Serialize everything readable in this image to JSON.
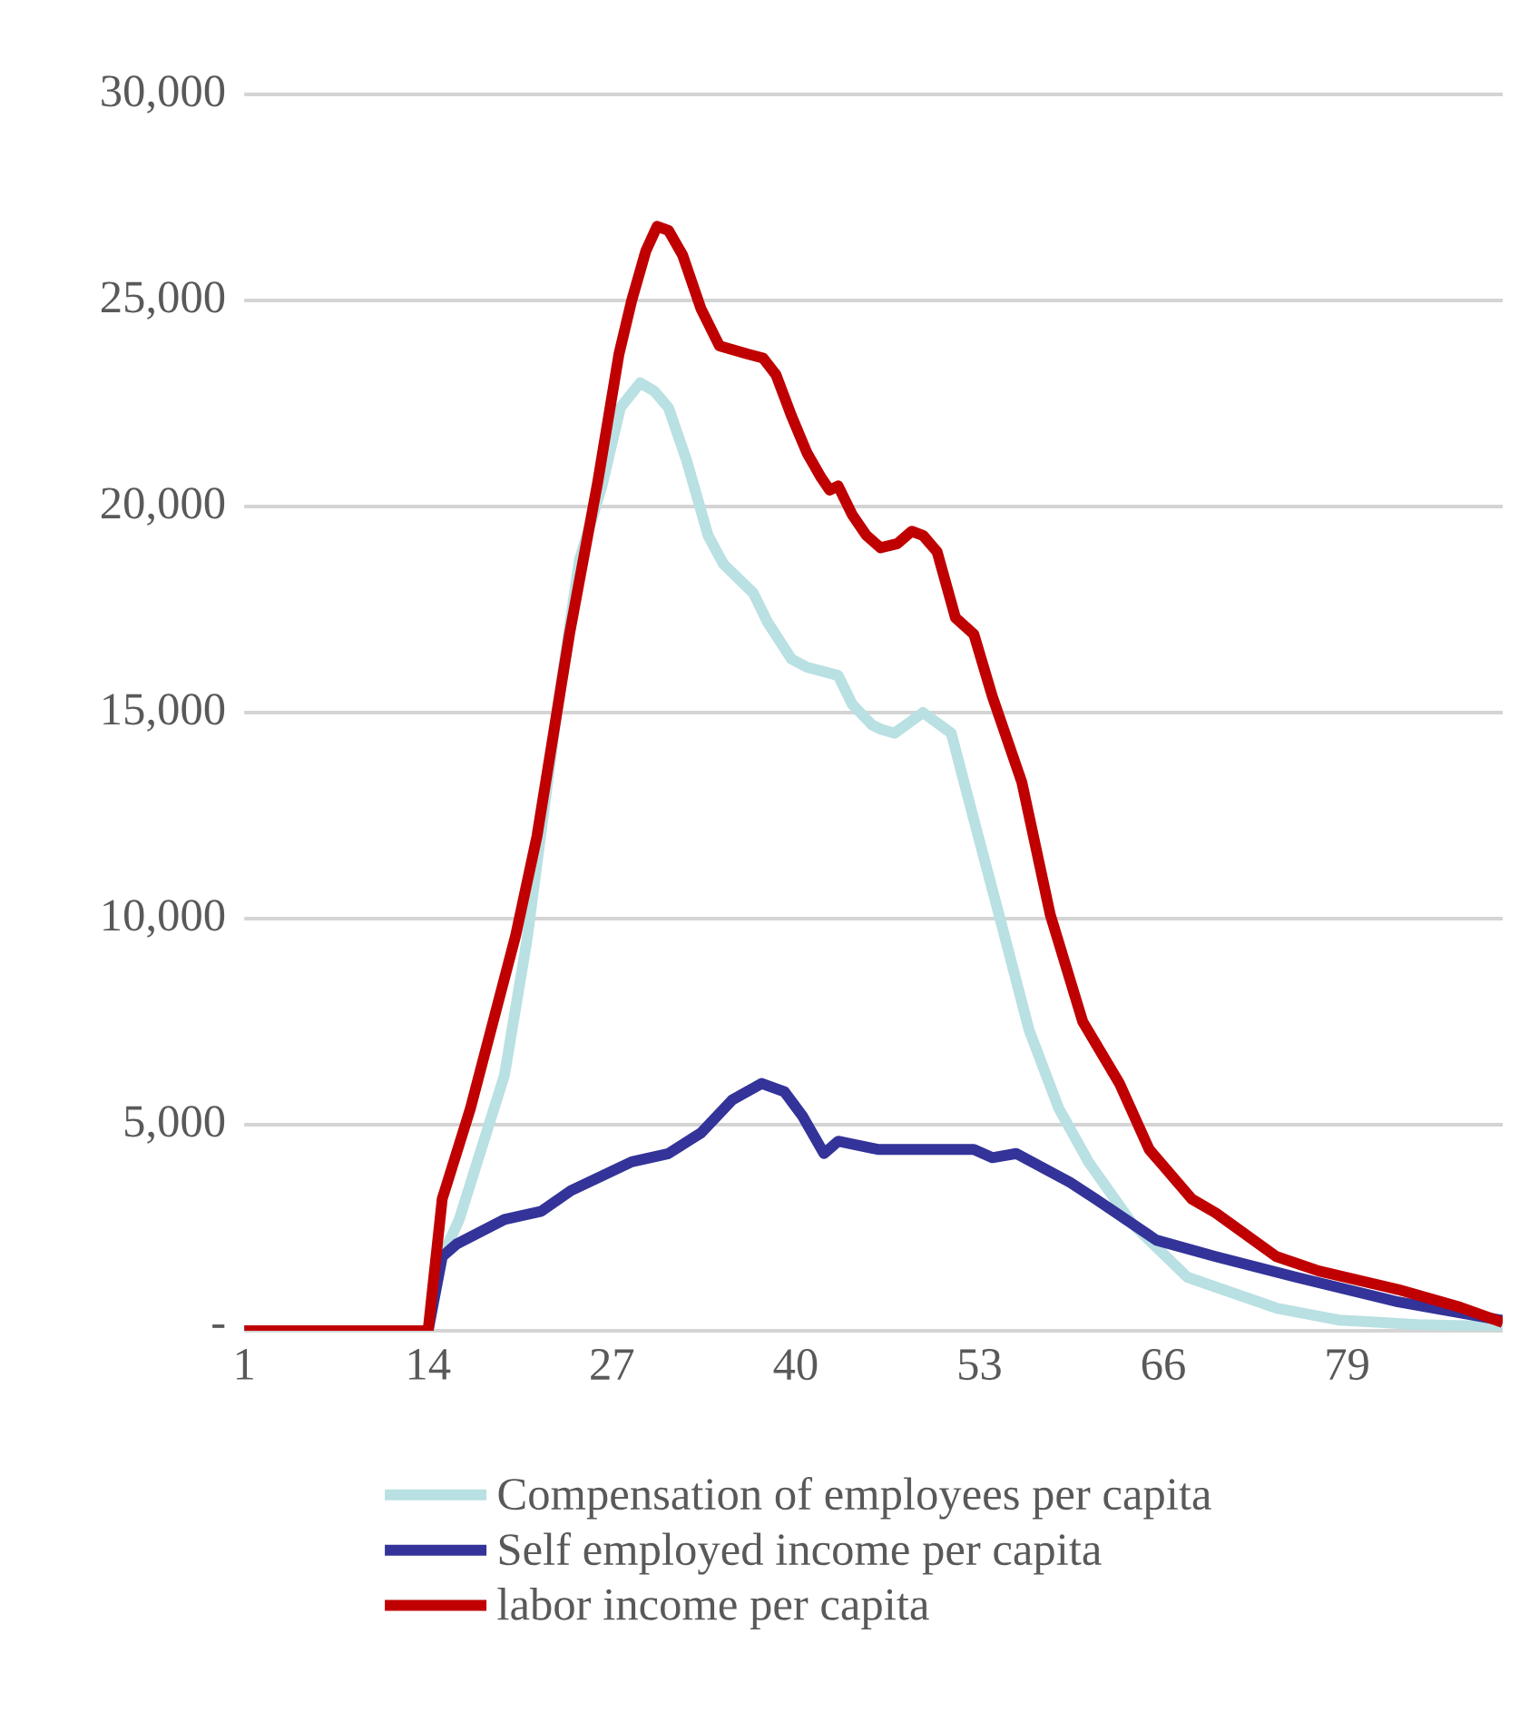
{
  "chart_data": {
    "type": "line",
    "xlim": [
      1,
      90
    ],
    "xticks": [
      1,
      14,
      27,
      40,
      53,
      66,
      79
    ],
    "ylim": [
      0,
      30000
    ],
    "yticks": [
      {
        "value": 0,
        "label": "-"
      },
      {
        "value": 5000,
        "label": "5,000"
      },
      {
        "value": 10000,
        "label": "10,000"
      },
      {
        "value": 15000,
        "label": "15,000"
      },
      {
        "value": 20000,
        "label": "20,000"
      },
      {
        "value": 25000,
        "label": "25,000"
      },
      {
        "value": 30000,
        "label": "30,000"
      }
    ],
    "grid": "y",
    "legend": "bottom",
    "marker": "none",
    "line_style": "solid",
    "series": [
      {
        "name": "Compensation of employees per capita",
        "color": "#b9e0e2",
        "x": [
          1,
          14,
          15,
          16.2,
          19.4,
          21,
          23.1,
          24.7,
          26.3,
          27.6,
          29,
          30,
          31,
          32.3,
          33.8,
          34.9,
          37,
          38,
          39.7,
          40.8,
          43,
          44,
          45.4,
          46,
          47,
          49,
          51,
          52.6,
          54.3,
          56.5,
          58.6,
          60.7,
          63.8,
          67.7,
          74,
          78.4,
          84,
          90
        ],
        "values": [
          0,
          0,
          1800,
          2700,
          6200,
          9500,
          15000,
          18700,
          20500,
          22400,
          23000,
          22800,
          22400,
          21100,
          19300,
          18600,
          17900,
          17200,
          16300,
          16100,
          15900,
          15200,
          14700,
          14600,
          14500,
          15000,
          14500,
          12400,
          10200,
          7300,
          5400,
          4100,
          2600,
          1300,
          550,
          260,
          150,
          100
        ]
      },
      {
        "name": "Self employed income per capita",
        "color": "#333399",
        "x": [
          1,
          14,
          15,
          16,
          19.4,
          22,
          24.1,
          28.4,
          31,
          33.3,
          35.5,
          37.6,
          39.2,
          40.5,
          42,
          43,
          45.8,
          49.6,
          52.6,
          53.9,
          55.6,
          59.4,
          61.2,
          65.5,
          69.7,
          75.4,
          82.6,
          90
        ],
        "values": [
          0,
          0,
          1800,
          2100,
          2700,
          2900,
          3400,
          4100,
          4300,
          4800,
          5600,
          6000,
          5800,
          5200,
          4300,
          4600,
          4400,
          4400,
          4400,
          4200,
          4300,
          3600,
          3200,
          2200,
          1800,
          1300,
          700,
          250
        ]
      },
      {
        "name": "labor income per capita",
        "color": "#c00000",
        "x": [
          1,
          14,
          15,
          17,
          20.2,
          21.7,
          24,
          26,
          27.5,
          28.4,
          29.4,
          30.2,
          31,
          32,
          33.3,
          34.6,
          36.6,
          37.7,
          38.6,
          39.7,
          40.8,
          41.8,
          42.4,
          43,
          44,
          45,
          46,
          47.2,
          48.2,
          49,
          50,
          51.3,
          52.6,
          53.9,
          56,
          58,
          60.3,
          62.9,
          65,
          68,
          69.7,
          74,
          77,
          82.6,
          87,
          90
        ],
        "values": [
          0,
          0,
          3200,
          5400,
          9600,
          12000,
          16900,
          20600,
          23700,
          25000,
          26200,
          26800,
          26700,
          26100,
          24800,
          23900,
          23700,
          23600,
          23200,
          22200,
          21300,
          20700,
          20400,
          20500,
          19800,
          19300,
          19000,
          19100,
          19400,
          19300,
          18900,
          17300,
          16900,
          15400,
          13300,
          10100,
          7500,
          6000,
          4400,
          3200,
          2860,
          1800,
          1450,
          1000,
          570,
          200
        ]
      }
    ]
  }
}
